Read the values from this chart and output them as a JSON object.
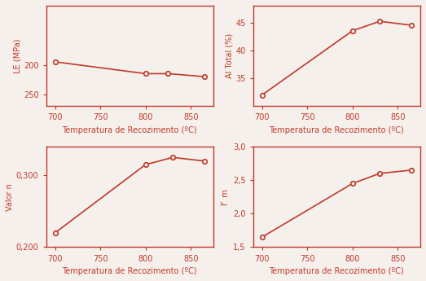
{
  "color": "#c0392b",
  "bg_color": "#f5f0eb",
  "plot1": {
    "xlabel": "Temperatura de Recozimento (ºC)",
    "ylabel": "LE (MPa)",
    "x": [
      700,
      800,
      825,
      865
    ],
    "y": [
      195,
      215,
      215,
      220
    ],
    "ylim": [
      100,
      270
    ],
    "yticks": [
      200,
      250
    ],
    "xticks": [
      700,
      750,
      800,
      850
    ],
    "invert_y": false,
    "ylim_display": [
      270,
      100
    ]
  },
  "plot2": {
    "xlabel": "Temperatura de Recozimento (ºC)",
    "ylabel": "Al Total (%)",
    "x": [
      700,
      800,
      830,
      865
    ],
    "y": [
      32.0,
      43.5,
      45.2,
      44.5
    ],
    "ylim": [
      30,
      48
    ],
    "yticks": [
      35,
      40,
      45
    ],
    "xticks": [
      700,
      750,
      800,
      850
    ],
    "invert_y": false
  },
  "plot3": {
    "xlabel": "Temperatura de Recozimento (ºC)",
    "ylabel": "Valor n",
    "x": [
      700,
      800,
      830,
      865
    ],
    "y": [
      0.22,
      0.315,
      0.325,
      0.32
    ],
    "ylim": [
      0.2,
      0.34
    ],
    "yticks": [
      0.2,
      0.3
    ],
    "xticks": [
      700,
      750,
      800,
      850
    ],
    "invert_y": false
  },
  "plot4": {
    "xlabel": "Temperatura de Recozimento (ºC)",
    "ylabel": "r̅  m",
    "x": [
      700,
      800,
      830,
      865
    ],
    "y": [
      1.65,
      2.45,
      2.6,
      2.65
    ],
    "ylim": [
      1.5,
      3.0
    ],
    "yticks": [
      1.5,
      2.0,
      2.5,
      3.0
    ],
    "xticks": [
      700,
      750,
      800,
      850
    ],
    "invert_y": false
  }
}
